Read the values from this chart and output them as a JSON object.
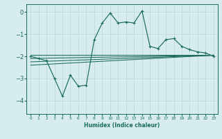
{
  "xlabel": "Humidex (Indice chaleur)",
  "bg_color": "#d6ecee",
  "grid_color": "#c2d8da",
  "line_color": "#1a6b5e",
  "xlim": [
    -0.5,
    23.5
  ],
  "ylim": [
    -4.6,
    0.35
  ],
  "xticks": [
    0,
    1,
    2,
    3,
    4,
    5,
    6,
    7,
    8,
    9,
    10,
    11,
    12,
    13,
    14,
    15,
    16,
    17,
    18,
    19,
    20,
    21,
    22,
    23
  ],
  "yticks": [
    0,
    -1,
    -2,
    -3,
    -4
  ],
  "main_x": [
    0,
    1,
    2,
    3,
    4,
    5,
    6,
    7,
    8,
    9,
    10,
    11,
    12,
    13,
    14,
    15,
    16,
    17,
    18,
    19,
    20,
    21,
    22,
    23
  ],
  "main_y": [
    -2.0,
    -2.1,
    -2.2,
    -3.0,
    -3.8,
    -2.85,
    -3.35,
    -3.3,
    -1.25,
    -0.5,
    -0.05,
    -0.5,
    -0.45,
    -0.5,
    0.05,
    -1.55,
    -1.65,
    -1.25,
    -1.2,
    -1.55,
    -1.7,
    -1.8,
    -1.85,
    -2.0
  ],
  "upper_line_x": [
    0,
    23
  ],
  "upper_line_y": [
    -1.95,
    -1.95
  ],
  "lower_line_x": [
    0,
    23
  ],
  "lower_line_y": [
    -2.4,
    -1.95
  ],
  "mid_upper_line_x": [
    0,
    23
  ],
  "mid_upper_line_y": [
    -2.1,
    -1.95
  ],
  "mid_lower_line_x": [
    0,
    23
  ],
  "mid_lower_line_y": [
    -2.25,
    -1.95
  ]
}
